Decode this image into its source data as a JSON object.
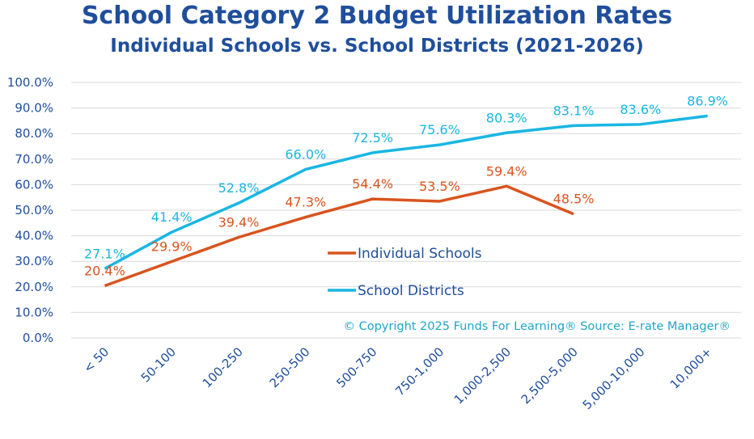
{
  "chart_data": {
    "type": "line",
    "title": "School Category 2 Budget Utilization Rates",
    "subtitle": "Individual Schools vs. School Districts (2021-2026)",
    "categories": [
      "< 50",
      "50-100",
      "100-250",
      "250-500",
      "500-750",
      "750-1,000",
      "1,000-2,500",
      "2,500-5,000",
      "5,000-10,000",
      "10,000+"
    ],
    "y_ticks": [
      "0.0%",
      "10.0%",
      "20.0%",
      "30.0%",
      "40.0%",
      "50.0%",
      "60.0%",
      "70.0%",
      "80.0%",
      "90.0%",
      "100.0%"
    ],
    "ylim": [
      0,
      100
    ],
    "grid": true,
    "legend_position": "center",
    "series": [
      {
        "name": "Individual Schools",
        "color": "#d9541e",
        "values": [
          20.4,
          29.9,
          39.4,
          47.3,
          54.4,
          53.5,
          59.4,
          48.5,
          null,
          null
        ],
        "labels": [
          "20.4%",
          "29.9%",
          "39.4%",
          "47.3%",
          "54.4%",
          "53.5%",
          "59.4%",
          "48.5%",
          "",
          ""
        ]
      },
      {
        "name": "School Districts",
        "color": "#1ab6e3",
        "values": [
          27.1,
          41.4,
          52.8,
          66.0,
          72.5,
          75.6,
          80.3,
          83.1,
          83.6,
          86.9
        ],
        "labels": [
          "27.1%",
          "41.4%",
          "52.8%",
          "66.0%",
          "72.5%",
          "75.6%",
          "80.3%",
          "83.1%",
          "83.6%",
          "86.9%"
        ]
      }
    ],
    "annotation": "© Copyright 2025 Funds For Learning® Source: E-rate Manager®"
  }
}
